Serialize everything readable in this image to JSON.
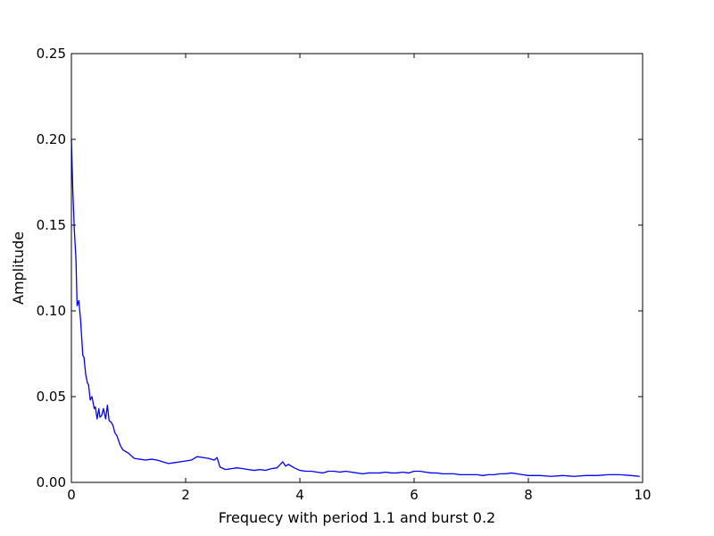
{
  "chart_data": {
    "type": "line",
    "title": "",
    "xlabel": "Frequecy with period 1.1 and burst 0.2",
    "ylabel": "Amplitude",
    "xlim": [
      0,
      10
    ],
    "ylim": [
      0,
      0.25
    ],
    "xticks": [
      0,
      2,
      4,
      6,
      8,
      10
    ],
    "xtick_labels": [
      "0",
      "2",
      "4",
      "6",
      "8",
      "10"
    ],
    "yticks": [
      0,
      0.05,
      0.1,
      0.15,
      0.2,
      0.25
    ],
    "ytick_labels": [
      "0.00",
      "0.05",
      "0.10",
      "0.15",
      "0.20",
      "0.25"
    ],
    "grid": false,
    "line_color": "#0000ff",
    "series": [
      {
        "x": [
          0,
          0.025,
          0.05,
          0.08,
          0.1,
          0.13,
          0.16,
          0.2,
          0.22,
          0.25,
          0.28,
          0.3,
          0.33,
          0.36,
          0.4,
          0.42,
          0.45,
          0.48,
          0.5,
          0.53,
          0.56,
          0.6,
          0.63,
          0.66,
          0.7,
          0.73,
          0.76,
          0.8,
          0.85,
          0.9,
          0.95,
          1.0,
          1.1,
          1.2,
          1.3,
          1.4,
          1.5,
          1.6,
          1.7,
          1.8,
          1.9,
          2.0,
          2.1,
          2.2,
          2.3,
          2.4,
          2.5,
          2.55,
          2.6,
          2.7,
          2.8,
          2.9,
          3.0,
          3.1,
          3.2,
          3.3,
          3.4,
          3.5,
          3.6,
          3.7,
          3.75,
          3.8,
          3.9,
          4.0,
          4.1,
          4.2,
          4.3,
          4.4,
          4.5,
          4.6,
          4.7,
          4.8,
          4.9,
          5.0,
          5.1,
          5.2,
          5.3,
          5.4,
          5.5,
          5.6,
          5.7,
          5.8,
          5.9,
          6.0,
          6.1,
          6.2,
          6.3,
          6.4,
          6.5,
          6.6,
          6.7,
          6.8,
          6.9,
          7.0,
          7.1,
          7.2,
          7.3,
          7.4,
          7.5,
          7.6,
          7.7,
          7.8,
          7.9,
          8.0,
          8.2,
          8.4,
          8.6,
          8.8,
          9.0,
          9.2,
          9.4,
          9.6,
          9.8,
          9.95
        ],
        "y": [
          0.2,
          0.17,
          0.148,
          0.13,
          0.103,
          0.106,
          0.095,
          0.074,
          0.073,
          0.063,
          0.058,
          0.057,
          0.048,
          0.05,
          0.043,
          0.044,
          0.037,
          0.043,
          0.038,
          0.039,
          0.043,
          0.037,
          0.045,
          0.036,
          0.035,
          0.033,
          0.029,
          0.027,
          0.022,
          0.019,
          0.018,
          0.017,
          0.014,
          0.0135,
          0.013,
          0.0135,
          0.013,
          0.012,
          0.011,
          0.0115,
          0.012,
          0.0125,
          0.013,
          0.015,
          0.0145,
          0.014,
          0.013,
          0.0145,
          0.009,
          0.0075,
          0.008,
          0.0085,
          0.008,
          0.0075,
          0.007,
          0.0075,
          0.007,
          0.008,
          0.0085,
          0.012,
          0.0095,
          0.0105,
          0.0085,
          0.007,
          0.0065,
          0.0065,
          0.006,
          0.0055,
          0.0065,
          0.0065,
          0.006,
          0.0065,
          0.006,
          0.0055,
          0.005,
          0.0055,
          0.0055,
          0.0055,
          0.006,
          0.0055,
          0.0055,
          0.006,
          0.0055,
          0.0065,
          0.0065,
          0.006,
          0.0055,
          0.0055,
          0.005,
          0.005,
          0.005,
          0.0045,
          0.0045,
          0.0045,
          0.0045,
          0.004,
          0.0045,
          0.0045,
          0.005,
          0.005,
          0.0055,
          0.005,
          0.0045,
          0.004,
          0.004,
          0.0035,
          0.004,
          0.0035,
          0.004,
          0.004,
          0.0045,
          0.0045,
          0.004,
          0.0035
        ]
      }
    ]
  }
}
